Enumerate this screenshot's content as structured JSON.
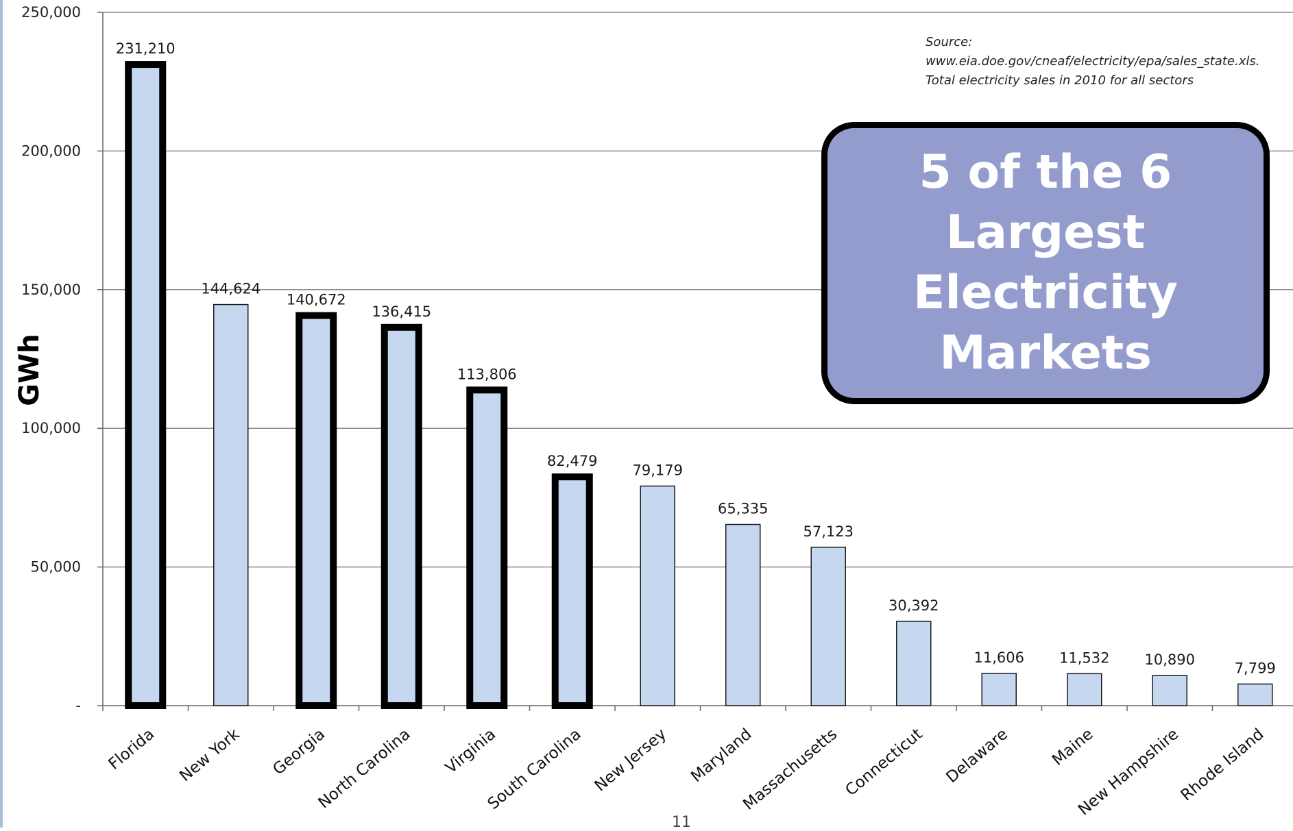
{
  "page_number": "11",
  "callout": {
    "lines": [
      "5 of the 6",
      "Largest",
      "Electricity",
      "Markets"
    ]
  },
  "source_note": {
    "lines": [
      "Source:",
      "www.eia.doe.gov/cneaf/electricity/epa/sales_state.xls.",
      "Total electricity sales in 2010 for all sectors"
    ]
  },
  "chart_data": {
    "type": "bar",
    "title": "",
    "xlabel": "",
    "ylabel": "GWh",
    "ylim": [
      0,
      250000
    ],
    "yticks": [
      0,
      50000,
      100000,
      150000,
      200000,
      250000
    ],
    "ytick_labels": [
      "-",
      "50,000",
      "100,000",
      "150,000",
      "200,000",
      "250,000"
    ],
    "grid": true,
    "categories": [
      "Florida",
      "New York",
      "Georgia",
      "North Carolina",
      "Virginia",
      "South Carolina",
      "New Jersey",
      "Maryland",
      "Massachusetts",
      "Connecticut",
      "Delaware",
      "Maine",
      "New Hampshire",
      "Rhode Island"
    ],
    "values": [
      231210,
      144624,
      140672,
      136415,
      113806,
      82479,
      79179,
      65335,
      57123,
      30392,
      11606,
      11532,
      10890,
      7799
    ],
    "value_labels": [
      "231,210",
      "144,624",
      "140,672",
      "136,415",
      "113,806",
      "82,479",
      "79,179",
      "65,335",
      "57,123",
      "30,392",
      "11,606",
      "11,532",
      "10,890",
      "7,799"
    ],
    "highlighted": [
      true,
      false,
      true,
      true,
      true,
      true,
      false,
      false,
      false,
      false,
      false,
      false,
      false,
      false
    ],
    "colors": {
      "bar_fill": "#c6d8f0",
      "bar_border": "#1a1a1a",
      "highlight_border": "#000000",
      "gridline": "#8c8c8c",
      "axis": "#666666"
    }
  }
}
